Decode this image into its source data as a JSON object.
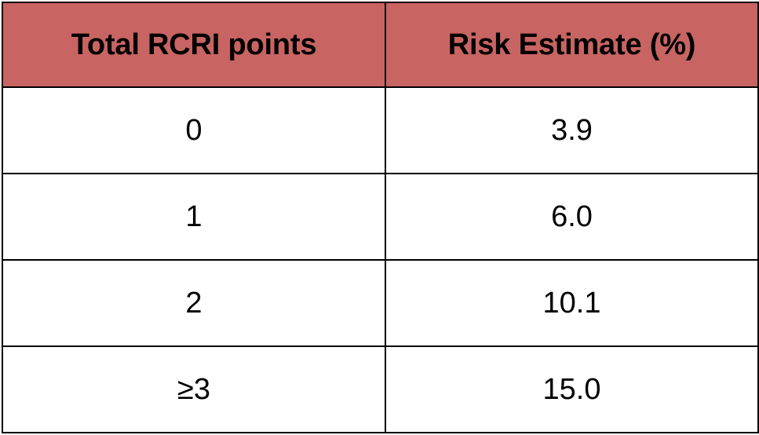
{
  "theme": {
    "header_bg": "#c86462",
    "border": "#000000",
    "row_bg": "#ffffff"
  },
  "table": {
    "headers": [
      "Total RCRI points",
      "Risk Estimate (%)"
    ],
    "rows": [
      [
        "0",
        "3.9"
      ],
      [
        "1",
        "6.0"
      ],
      [
        "2",
        "10.1"
      ],
      [
        "≥3",
        "15.0"
      ]
    ]
  }
}
